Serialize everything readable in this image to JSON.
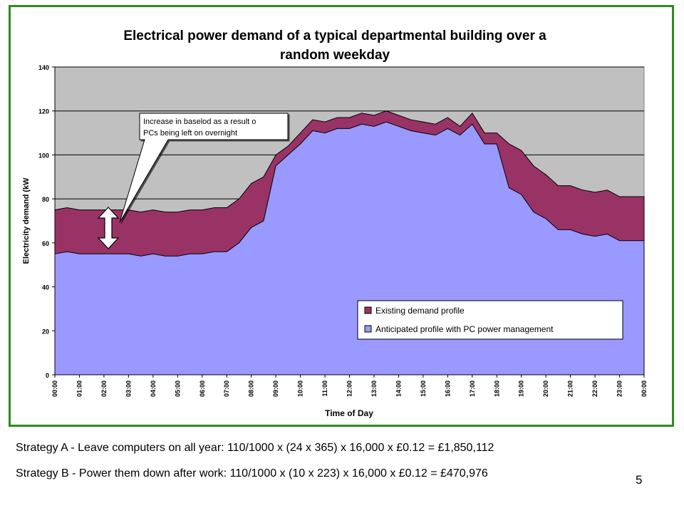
{
  "chart_data": {
    "type": "area",
    "title_line1": "Electrical power demand of a typical departmental building over a",
    "title_line2": "random weekday",
    "xlabel": "Time of Day",
    "ylabel": "Electricity demand (kW",
    "ylim": [
      0,
      140
    ],
    "yticks": [
      0,
      20,
      40,
      60,
      80,
      100,
      120,
      140
    ],
    "xticks": [
      "00:00",
      "01:00",
      "02:00",
      "03:00",
      "04:00",
      "05:00",
      "06:00",
      "07:00",
      "08:00",
      "09:00",
      "10:00",
      "11:00",
      "12:00",
      "13:00",
      "14:00",
      "15:00",
      "16:00",
      "17:00",
      "18:00",
      "19:00",
      "20:00",
      "21:00",
      "22:00",
      "23:00",
      "00:00"
    ],
    "grid": true,
    "legend_position": "bottom-right",
    "x_hours": [
      0,
      0.5,
      1,
      1.5,
      2,
      2.5,
      3,
      3.5,
      4,
      4.5,
      5,
      5.5,
      6,
      6.5,
      7,
      7.5,
      8,
      8.5,
      9,
      9.5,
      10,
      10.5,
      11,
      11.5,
      12,
      12.5,
      13,
      13.5,
      14,
      14.5,
      15,
      15.5,
      16,
      16.5,
      17,
      17.5,
      18,
      18.5,
      19,
      19.5,
      20,
      20.5,
      21,
      21.5,
      22,
      22.5,
      23,
      23.5,
      24
    ],
    "series": [
      {
        "name": "Existing demand profile",
        "color": "#993366",
        "values": [
          75,
          76,
          75,
          75,
          75,
          75,
          75,
          74,
          75,
          74,
          74,
          75,
          75,
          76,
          76,
          80,
          87,
          90,
          100,
          104,
          110,
          116,
          115,
          117,
          117,
          119,
          118,
          120,
          118,
          116,
          115,
          114,
          117,
          113,
          119,
          110,
          110,
          105,
          102,
          95,
          91,
          86,
          86,
          84,
          83,
          84,
          81,
          81,
          81
        ]
      },
      {
        "name": "Anticipated profile with PC power management",
        "color": "#9999ff",
        "values": [
          55,
          56,
          55,
          55,
          55,
          55,
          55,
          54,
          55,
          54,
          54,
          55,
          55,
          56,
          56,
          60,
          67,
          70,
          95,
          100,
          105,
          111,
          110,
          112,
          112,
          114,
          113,
          115,
          113,
          111,
          110,
          109,
          112,
          109,
          114,
          105,
          105,
          85,
          82,
          74,
          71,
          66,
          66,
          64,
          63,
          64,
          61,
          61,
          61
        ]
      }
    ],
    "annotation": {
      "text_line1": "Increase in baselod as a result o",
      "text_line2": "PCs being left on overnight"
    }
  },
  "footer": {
    "strategy_a": "Strategy A - Leave computers on all year: 110/1000 x (24 x 365) x 16,000 x £0.12 = £1,850,112",
    "strategy_b": "Strategy B - Power them down after work: 110/1000 x (10 x 223) x 16,000 x £0.12 = £470,976",
    "page_number": "5"
  }
}
